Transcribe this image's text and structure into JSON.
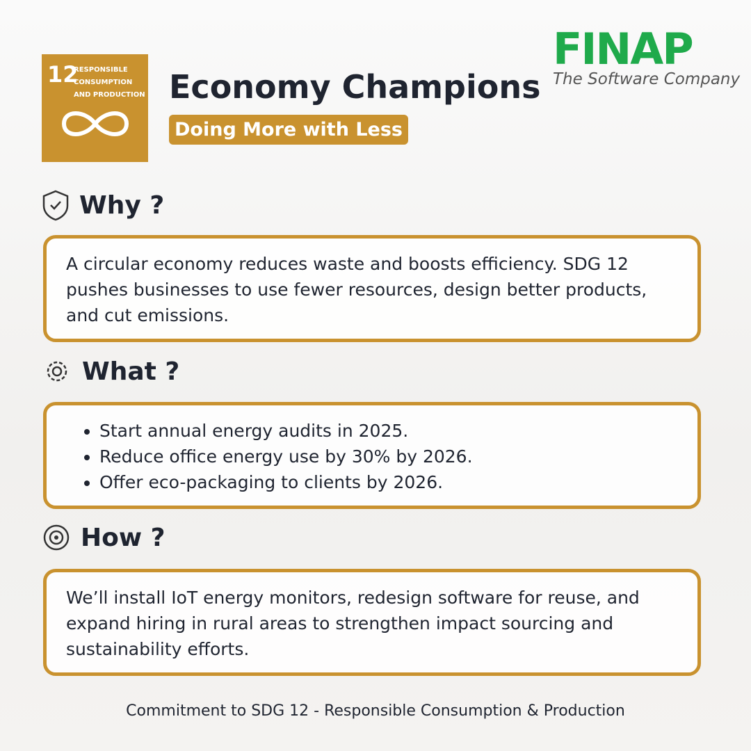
{
  "badge": {
    "number": "12",
    "lines": [
      "RESPONSIBLE",
      "CONSUMPTION",
      "AND PRODUCTION"
    ]
  },
  "header": {
    "title": "Economy Champions",
    "subtitle": "Doing More with Less"
  },
  "logo": {
    "name": "FINAP",
    "tagline": "The Software Company"
  },
  "sections": [
    {
      "heading": "Why ?",
      "text": "A circular economy reduces waste and boosts efficiency. SDG 12 pushes businesses to use fewer resources, design better products, and cut emissions."
    },
    {
      "heading": "What ?",
      "items": [
        "Start annual energy audits in 2025.",
        "Reduce office energy use by 30% by 2026.",
        "Offer eco-packaging to clients by 2026."
      ]
    },
    {
      "heading": "How ?",
      "text": "We’ll install IoT energy monitors, redesign software for reuse, and expand hiring in rural areas to strengthen impact sourcing and sustainability efforts."
    }
  ],
  "footer": "Commitment to SDG 12 - Responsible Consumption & Production"
}
